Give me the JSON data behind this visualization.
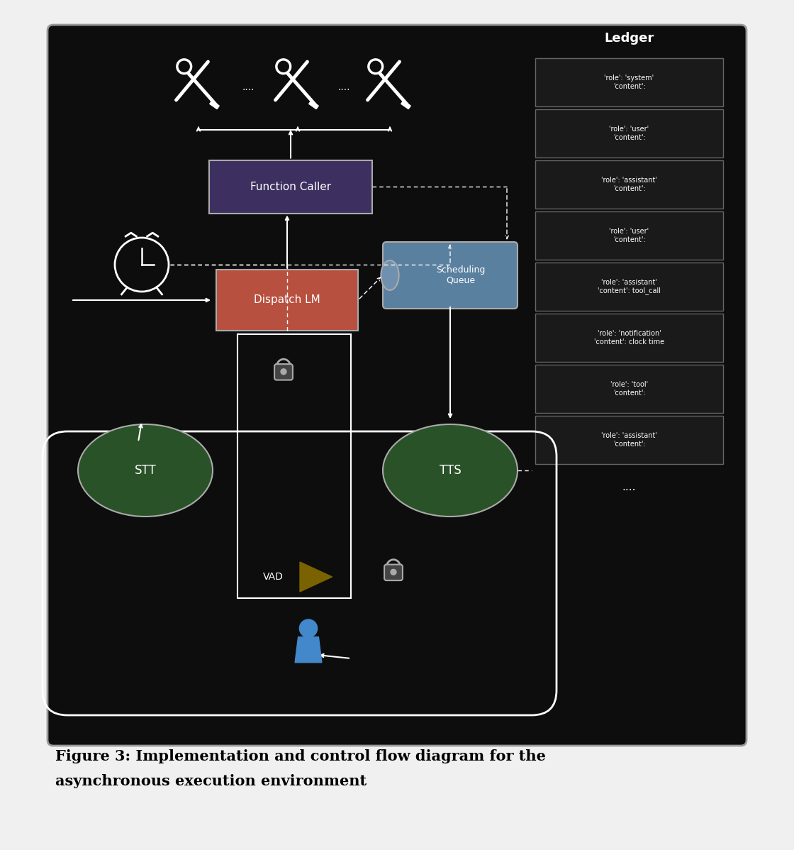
{
  "bg_color": "#0d0d0d",
  "panel_bg": "#0d0d0d",
  "outer_bg": "#f0f0f0",
  "title_line1": "Figure 3: Implementation and control flow diagram for the",
  "title_line2": "asynchronous execution environment",
  "title_fontsize": 15,
  "ledger_title": "Ledger",
  "ledger_entries": [
    "'role': 'system'\n'content':",
    "'role': 'user'\n'content':",
    "'role': 'assistant'\n'content':",
    "'role': 'user'\n'content':",
    "'role': 'assistant'\n'content': tool_call",
    "'role': 'notification'\n'content': clock time",
    "'role': 'tool'\n'content':",
    "'role': 'assistant'\n'content':"
  ],
  "fc_color": "#3d3060",
  "dl_color": "#b85040",
  "sq_color": "#5a80a0",
  "sq_cap_color": "#7090b0",
  "stt_color": "#2a5228",
  "tts_color": "#2a5228",
  "vad_color": "#7a6200",
  "person_color": "#4488cc",
  "white": "#ffffff",
  "gray": "#888888",
  "tool_dots": "....",
  "lock_color": "#aaaaaa",
  "ledger_box_bg": "#1a1a1a",
  "ledger_border": "#666666"
}
